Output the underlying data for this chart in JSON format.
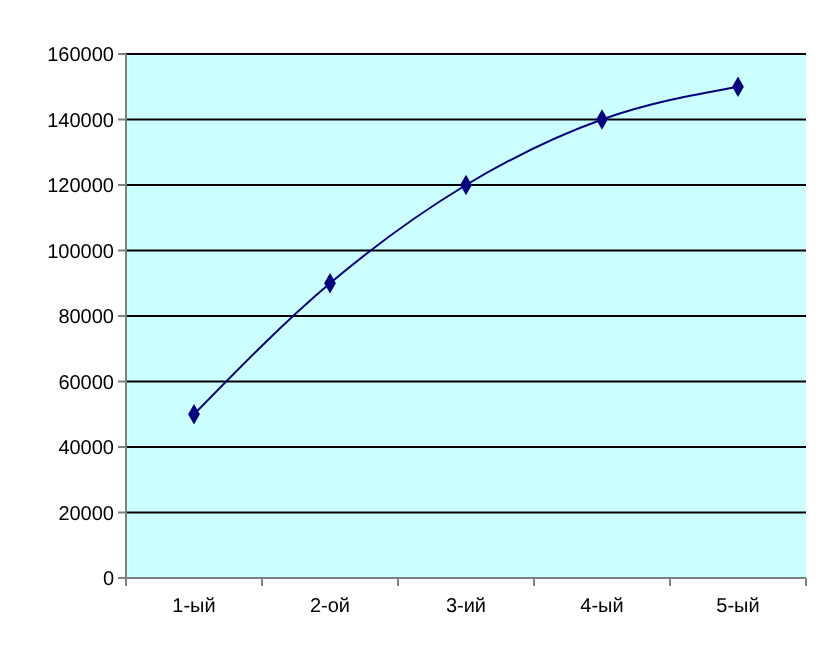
{
  "chart_data": {
    "type": "line",
    "categories": [
      "1-ый",
      "2-ой",
      "3-ий",
      "4-ый",
      "5-ый"
    ],
    "series": [
      {
        "color": "#000080",
        "values": [
          50000,
          90000,
          120000,
          140000,
          150000
        ]
      }
    ],
    "ylim": [
      0,
      160000
    ],
    "yticks": [
      0,
      20000,
      40000,
      60000,
      80000,
      100000,
      120000,
      140000,
      160000
    ],
    "grid": "y",
    "marker": "diamond",
    "line_style": "solid"
  }
}
